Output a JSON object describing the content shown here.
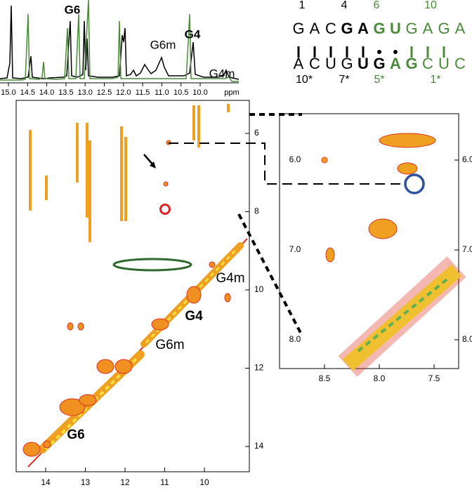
{
  "spectrum_1d": {
    "x_ticks": [
      "15.0",
      "14.5",
      "14.0",
      "13.5",
      "13.0",
      "12.5",
      "12.0",
      "11.5",
      "11.0",
      "10.5",
      "10.0"
    ],
    "unit": "ppm",
    "peak_labels": [
      "G6",
      "G6m",
      "G4",
      "G4m"
    ]
  },
  "sequence": {
    "top_numbers": [
      "1",
      "4",
      "6",
      "10"
    ],
    "top_strand": [
      "G",
      "A",
      "C",
      "G",
      "A",
      "G",
      "U",
      "G",
      "A",
      "G",
      "A"
    ],
    "bottom_strand": [
      "A",
      "C",
      "U",
      "G",
      "U",
      "G",
      "A",
      "G",
      "C",
      "U",
      "C"
    ],
    "bottom_numbers": [
      "10*",
      "7*",
      "5*",
      "1*"
    ]
  },
  "spectrum_2d": {
    "x_ticks": [
      "14",
      "13",
      "12",
      "11",
      "10"
    ],
    "y_ticks": [
      "6",
      "8",
      "10",
      "12",
      "14"
    ],
    "labels": [
      "G4m",
      "G4",
      "G6m",
      "G6"
    ]
  },
  "inset": {
    "x_ticks": [
      "8.5",
      "8.0",
      "7.5"
    ],
    "y_ticks": [
      "6.0",
      "7.0",
      "8.0"
    ]
  }
}
